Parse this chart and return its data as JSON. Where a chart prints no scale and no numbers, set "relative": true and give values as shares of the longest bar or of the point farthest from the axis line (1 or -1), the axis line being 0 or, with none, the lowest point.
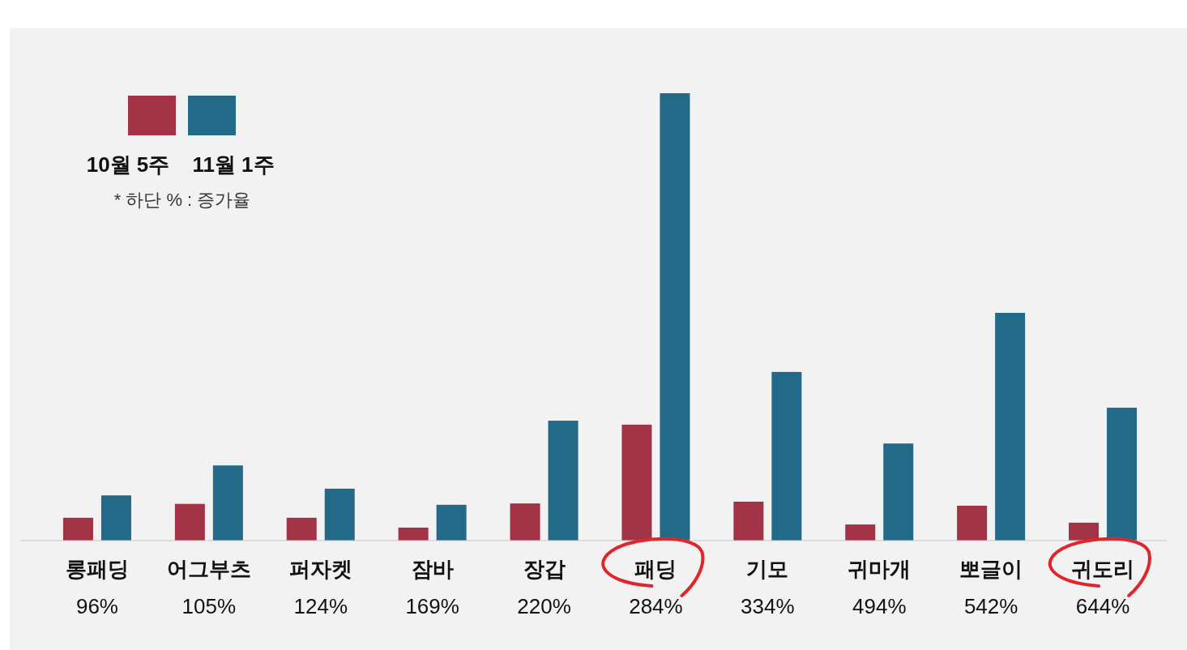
{
  "chart_data": {
    "type": "bar",
    "relative": true,
    "categories": [
      "롱패딩",
      "어그부츠",
      "퍼자켓",
      "잠바",
      "장갑",
      "패딩",
      "기모",
      "귀마개",
      "뽀글이",
      "귀도리"
    ],
    "series": [
      {
        "name": "10월 5주",
        "color": "#a23346",
        "values": [
          0.051,
          0.082,
          0.051,
          0.029,
          0.083,
          0.259,
          0.087,
          0.036,
          0.078,
          0.04
        ]
      },
      {
        "name": "11월 1주",
        "color": "#226a88",
        "values": [
          0.101,
          0.168,
          0.116,
          0.08,
          0.268,
          1,
          0.377,
          0.217,
          0.509,
          0.297
        ]
      }
    ],
    "legend": "top left",
    "annotations": [
      "* 하단 % : 증가율",
      "96%",
      "105%",
      "124%",
      "169%",
      "220%",
      "284%",
      "334%",
      "494%",
      "542%",
      "644%"
    ]
  }
}
